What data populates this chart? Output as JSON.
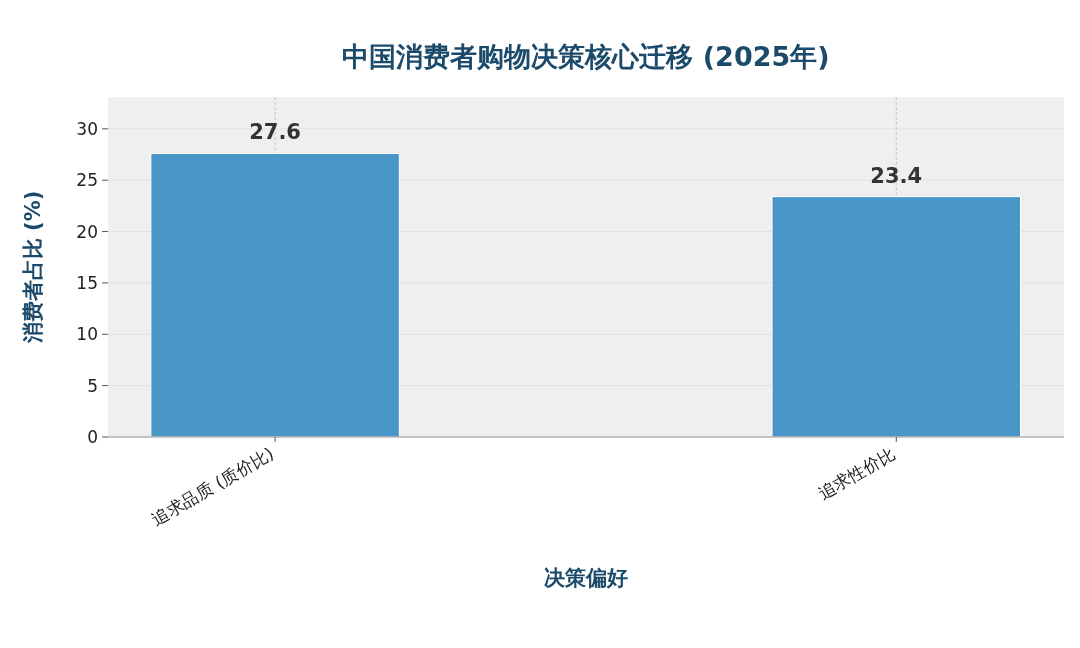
{
  "chart_data": {
    "type": "bar",
    "title": "中国消费者购物决策核心迁移 (2025年)",
    "xlabel": "决策偏好",
    "ylabel": "消费者占比 (%)",
    "categories": [
      "追求品质 (质价比)",
      "追求性价比"
    ],
    "values": [
      27.6,
      23.4
    ],
    "color": "#4a96c8",
    "ylim": [
      0,
      33.1
    ],
    "yticks": [
      0,
      5,
      10,
      15,
      20,
      25,
      30
    ],
    "grid": true,
    "data_labels": true
  }
}
